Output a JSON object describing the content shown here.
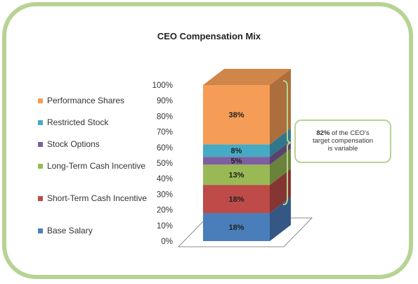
{
  "chart_data": {
    "type": "bar",
    "title": "CEO Compensation Mix",
    "categories": [
      ""
    ],
    "stacked": true,
    "three_d": true,
    "percent_stacked": true,
    "ylim": [
      0,
      100
    ],
    "y_ticks": [
      "0%",
      "10%",
      "20%",
      "30%",
      "40%",
      "50%",
      "60%",
      "70%",
      "80%",
      "90%",
      "100%"
    ],
    "legend_position": "left",
    "series": [
      {
        "name": "Base Salary",
        "values": [
          18
        ],
        "label": "18%",
        "color": "#4a7ebb"
      },
      {
        "name": "Short-Term Cash Incentive",
        "values": [
          18
        ],
        "label": "18%",
        "color": "#be4b48"
      },
      {
        "name": "Long-Term Cash Incentive",
        "values": [
          13
        ],
        "label": "13%",
        "color": "#98b954"
      },
      {
        "name": "Stock Options",
        "values": [
          5
        ],
        "label": "5%",
        "color": "#7d5fa0"
      },
      {
        "name": "Restricted Stock",
        "values": [
          8
        ],
        "label": "8%",
        "color": "#46aac5"
      },
      {
        "name": "Performance Shares",
        "values": [
          38
        ],
        "label": "38%",
        "color": "#f59d56"
      }
    ],
    "annotation": {
      "bold_value": "82%",
      "text_line1": " of the CEO's",
      "text_line2": "target compensation",
      "text_line3": "is variable",
      "brackets_range": [
        18,
        100
      ]
    }
  },
  "legend_order": [
    5,
    4,
    3,
    2,
    1,
    0
  ],
  "frame_color": "#b7d394"
}
